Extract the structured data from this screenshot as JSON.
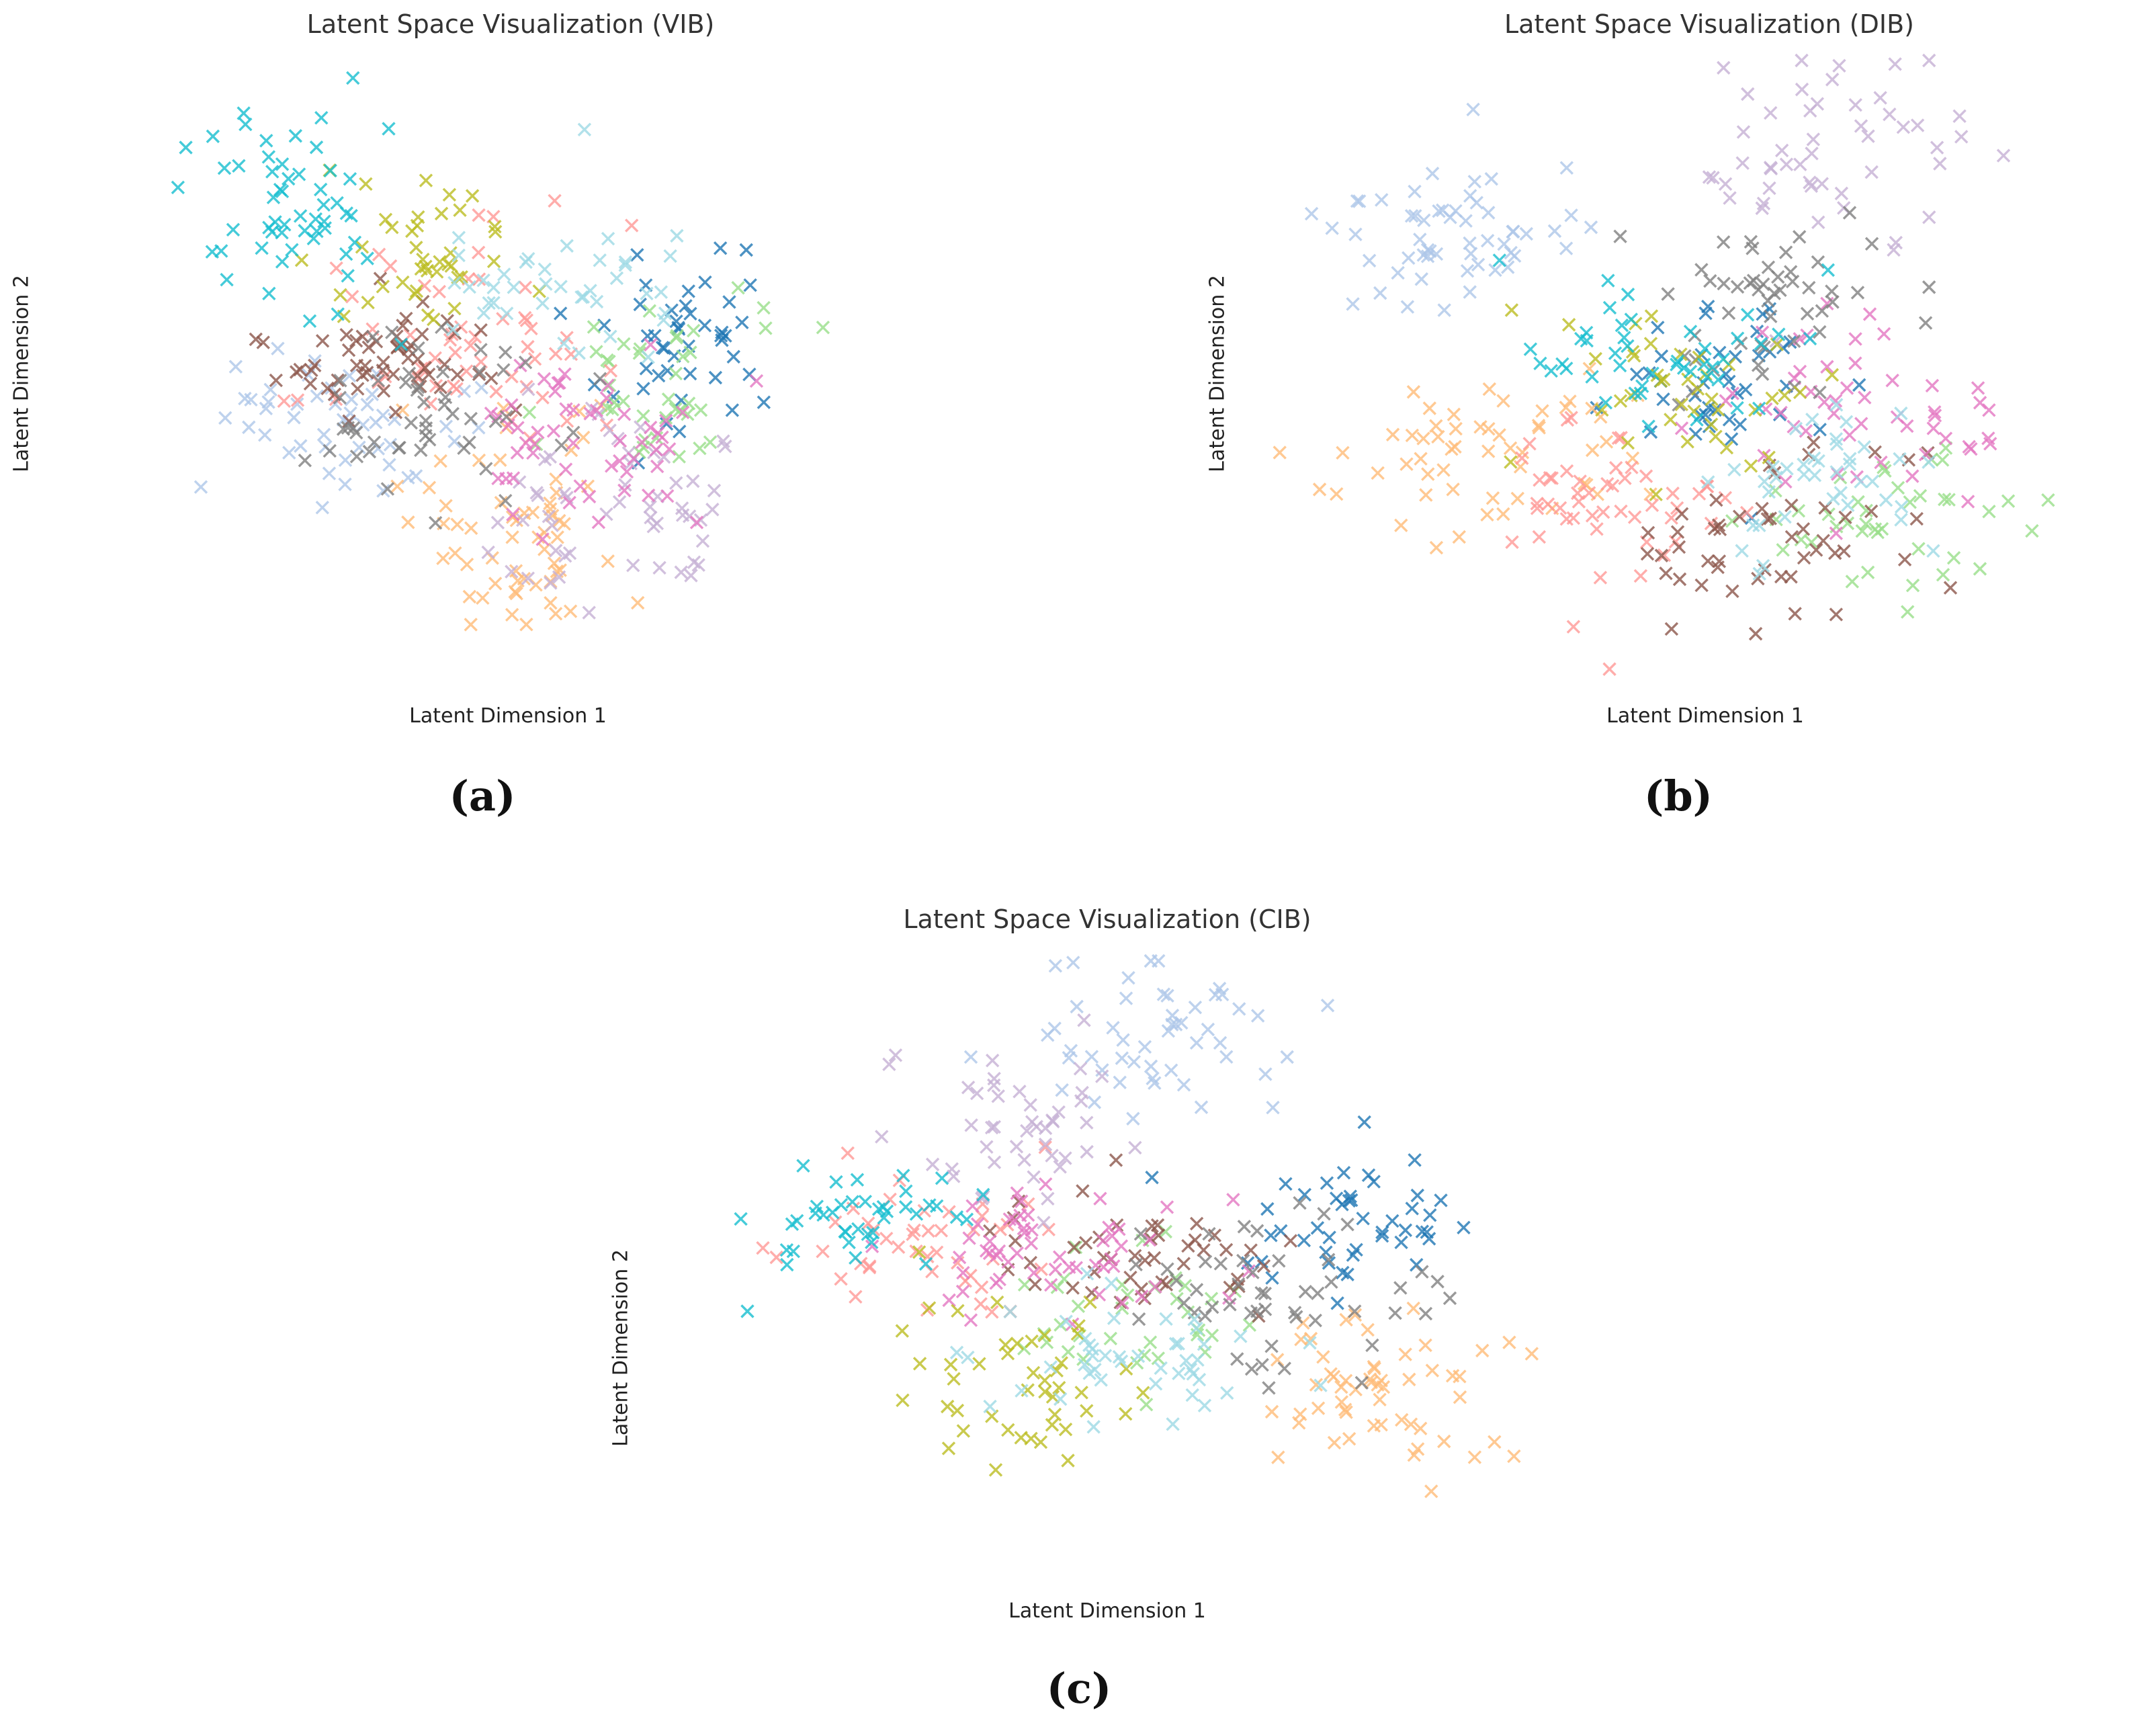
{
  "chart_data": [
    {
      "type": "scatter",
      "title": "Latent Space Visualization (VIB)",
      "xlabel": "Latent Dimension 1",
      "ylabel": "Latent Dimension 2",
      "caption": "(a)",
      "marker": "x",
      "xlim": [
        -4.5,
        4.5
      ],
      "ylim": [
        -3.5,
        3.5
      ],
      "axes_visible": false,
      "grid": false,
      "clusters": [
        {
          "class": 0,
          "color": "#1f77b4",
          "n": 45,
          "center": [
            2.4,
            0.2
          ],
          "spread": [
            0.6,
            0.5
          ]
        },
        {
          "class": 1,
          "color": "#aec7e8",
          "n": 50,
          "center": [
            -1.9,
            -0.7
          ],
          "spread": [
            0.8,
            0.4
          ]
        },
        {
          "class": 2,
          "color": "#ffbb78",
          "n": 60,
          "center": [
            0.4,
            -1.9
          ],
          "spread": [
            0.8,
            0.6
          ]
        },
        {
          "class": 3,
          "color": "#98df8a",
          "n": 40,
          "center": [
            2.1,
            -0.3
          ],
          "spread": [
            0.7,
            0.5
          ]
        },
        {
          "class": 4,
          "color": "#ff9896",
          "n": 55,
          "center": [
            -0.3,
            0.4
          ],
          "spread": [
            0.9,
            0.6
          ]
        },
        {
          "class": 5,
          "color": "#c5b0d5",
          "n": 55,
          "center": [
            1.5,
            -1.6
          ],
          "spread": [
            0.8,
            0.6
          ]
        },
        {
          "class": 6,
          "color": "#8c564b",
          "n": 55,
          "center": [
            -1.3,
            0.1
          ],
          "spread": [
            0.8,
            0.4
          ]
        },
        {
          "class": 7,
          "color": "#e377c2",
          "n": 55,
          "center": [
            1.1,
            -0.8
          ],
          "spread": [
            0.8,
            0.5
          ]
        },
        {
          "class": 8,
          "color": "#7f7f7f",
          "n": 50,
          "center": [
            -0.7,
            -0.6
          ],
          "spread": [
            0.8,
            0.5
          ]
        },
        {
          "class": 9,
          "color": "#bcbd22",
          "n": 40,
          "center": [
            -0.9,
            1.3
          ],
          "spread": [
            0.7,
            0.5
          ]
        },
        {
          "class": 10,
          "color": "#17becf",
          "n": 55,
          "center": [
            -2.5,
            1.9
          ],
          "spread": [
            0.6,
            0.6
          ]
        },
        {
          "class": 11,
          "color": "#9edae5",
          "n": 40,
          "center": [
            1.0,
            0.9
          ],
          "spread": [
            0.8,
            0.5
          ]
        }
      ]
    },
    {
      "type": "scatter",
      "title": "Latent Space Visualization (DIB)",
      "xlabel": "Latent Dimension 1",
      "ylabel": "Latent Dimension 2",
      "caption": "(b)",
      "marker": "x",
      "xlim": [
        -4.5,
        4.5
      ],
      "ylim": [
        -3.5,
        3.5
      ],
      "axes_visible": false,
      "grid": false,
      "clusters": [
        {
          "class": 0,
          "color": "#1f77b4",
          "n": 40,
          "center": [
            0.3,
            -0.2
          ],
          "spread": [
            0.6,
            0.5
          ]
        },
        {
          "class": 1,
          "color": "#aec7e8",
          "n": 55,
          "center": [
            -2.6,
            1.5
          ],
          "spread": [
            0.7,
            0.5
          ]
        },
        {
          "class": 2,
          "color": "#ffbb78",
          "n": 55,
          "center": [
            -2.2,
            -1.2
          ],
          "spread": [
            0.8,
            0.5
          ]
        },
        {
          "class": 3,
          "color": "#98df8a",
          "n": 40,
          "center": [
            1.6,
            -1.8
          ],
          "spread": [
            0.8,
            0.5
          ]
        },
        {
          "class": 4,
          "color": "#ff9896",
          "n": 50,
          "center": [
            -0.9,
            -1.5
          ],
          "spread": [
            0.7,
            0.5
          ]
        },
        {
          "class": 5,
          "color": "#c5b0d5",
          "n": 50,
          "center": [
            1.5,
            2.3
          ],
          "spread": [
            0.7,
            0.6
          ]
        },
        {
          "class": 6,
          "color": "#8c564b",
          "n": 50,
          "center": [
            0.9,
            -1.9
          ],
          "spread": [
            0.8,
            0.5
          ]
        },
        {
          "class": 7,
          "color": "#e377c2",
          "n": 50,
          "center": [
            1.8,
            -0.6
          ],
          "spread": [
            0.9,
            0.6
          ]
        },
        {
          "class": 8,
          "color": "#7f7f7f",
          "n": 50,
          "center": [
            0.7,
            0.8
          ],
          "spread": [
            0.7,
            0.6
          ]
        },
        {
          "class": 9,
          "color": "#bcbd22",
          "n": 40,
          "center": [
            -0.3,
            -0.3
          ],
          "spread": [
            0.6,
            0.5
          ]
        },
        {
          "class": 10,
          "color": "#17becf",
          "n": 45,
          "center": [
            -0.5,
            0.0
          ],
          "spread": [
            0.7,
            0.4
          ]
        },
        {
          "class": 11,
          "color": "#9edae5",
          "n": 40,
          "center": [
            1.4,
            -1.3
          ],
          "spread": [
            0.8,
            0.5
          ]
        }
      ]
    },
    {
      "type": "scatter",
      "title": "Latent Space Visualization (CIB)",
      "xlabel": "Latent Dimension 1",
      "ylabel": "Latent Dimension 2",
      "caption": "(c)",
      "marker": "x",
      "xlim": [
        -4.5,
        4.5
      ],
      "ylim": [
        -3.5,
        3.5
      ],
      "axes_visible": false,
      "grid": false,
      "clusters": [
        {
          "class": 0,
          "color": "#1f77b4",
          "n": 45,
          "center": [
            2.5,
            0.6
          ],
          "spread": [
            0.7,
            0.4
          ]
        },
        {
          "class": 1,
          "color": "#aec7e8",
          "n": 50,
          "center": [
            0.5,
            2.7
          ],
          "spread": [
            0.8,
            0.5
          ]
        },
        {
          "class": 2,
          "color": "#ffbb78",
          "n": 55,
          "center": [
            2.8,
            -1.4
          ],
          "spread": [
            0.7,
            0.5
          ]
        },
        {
          "class": 3,
          "color": "#98df8a",
          "n": 35,
          "center": [
            0.4,
            -0.6
          ],
          "spread": [
            0.6,
            0.5
          ]
        },
        {
          "class": 4,
          "color": "#ff9896",
          "n": 45,
          "center": [
            -1.8,
            0.3
          ],
          "spread": [
            0.7,
            0.4
          ]
        },
        {
          "class": 5,
          "color": "#c5b0d5",
          "n": 45,
          "center": [
            -1.0,
            1.6
          ],
          "spread": [
            0.6,
            0.5
          ]
        },
        {
          "class": 6,
          "color": "#8c564b",
          "n": 45,
          "center": [
            0.3,
            0.1
          ],
          "spread": [
            0.7,
            0.4
          ]
        },
        {
          "class": 7,
          "color": "#e377c2",
          "n": 55,
          "center": [
            -0.5,
            0.2
          ],
          "spread": [
            0.8,
            0.4
          ]
        },
        {
          "class": 8,
          "color": "#7f7f7f",
          "n": 50,
          "center": [
            1.6,
            -0.3
          ],
          "spread": [
            0.7,
            0.5
          ]
        },
        {
          "class": 9,
          "color": "#bcbd22",
          "n": 45,
          "center": [
            -1.0,
            -1.2
          ],
          "spread": [
            0.6,
            0.5
          ]
        },
        {
          "class": 10,
          "color": "#17becf",
          "n": 40,
          "center": [
            -2.5,
            0.5
          ],
          "spread": [
            0.6,
            0.3
          ]
        },
        {
          "class": 11,
          "color": "#9edae5",
          "n": 45,
          "center": [
            0.3,
            -1.2
          ],
          "spread": [
            0.7,
            0.4
          ]
        }
      ]
    }
  ]
}
